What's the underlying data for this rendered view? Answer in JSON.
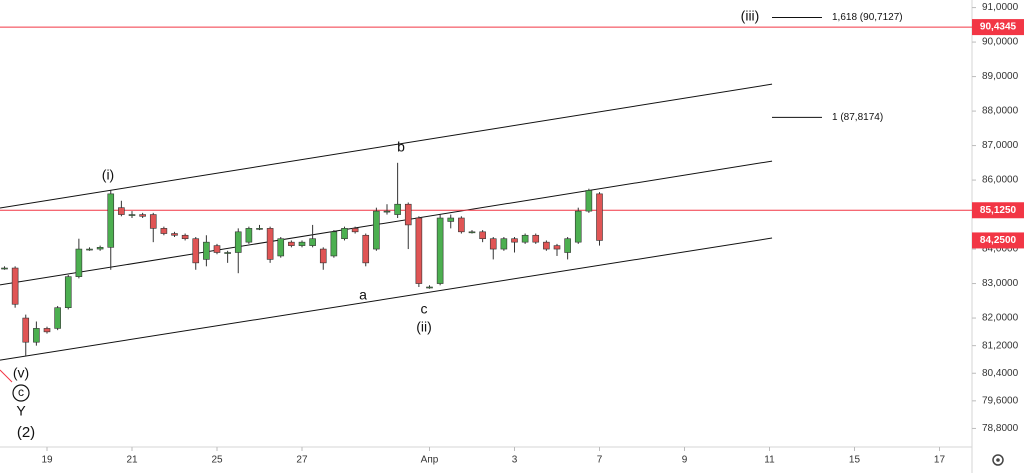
{
  "chart_data": {
    "type": "candlestick",
    "x": [
      -1,
      -0.75,
      -0.5,
      -0.25,
      0,
      0.25,
      0.5,
      0.75,
      1,
      1.25,
      1.5,
      1.75,
      2,
      2.25,
      2.5,
      2.75,
      3,
      3.25,
      3.5,
      3.75,
      4,
      4.25,
      4.5,
      4.75,
      5,
      5.25,
      5.5,
      5.75,
      6,
      6.25,
      6.5,
      6.75,
      7,
      7.25,
      7.5,
      7.75,
      8,
      8.25,
      8.5,
      8.75,
      9,
      9.25,
      9.5,
      9.75,
      10,
      10.25,
      10.5,
      10.75,
      11,
      11.25,
      11.5,
      11.75,
      12,
      12.25,
      12.5,
      12.75,
      13
    ],
    "open": [
      83.45,
      83.45,
      82.0,
      81.3,
      81.7,
      81.7,
      82.3,
      83.2,
      84.0,
      84.0,
      84.05,
      85.2,
      85.0,
      85.0,
      85.0,
      84.6,
      84.45,
      84.4,
      84.3,
      83.7,
      84.1,
      83.9,
      83.9,
      84.2,
      84.6,
      84.6,
      83.8,
      84.2,
      84.1,
      84.1,
      84.0,
      83.8,
      84.3,
      84.6,
      84.4,
      84.0,
      85.1,
      85.0,
      85.3,
      84.9,
      82.9,
      83.0,
      84.8,
      84.9,
      84.5,
      84.5,
      84.3,
      84.0,
      84.3,
      84.2,
      84.4,
      84.2,
      84.1,
      83.9,
      84.2,
      85.1,
      85.6
    ],
    "high": [
      83.5,
      83.5,
      82.1,
      81.9,
      81.75,
      82.35,
      83.25,
      84.3,
      84.05,
      84.1,
      85.7,
      85.4,
      85.1,
      85.05,
      85.05,
      84.65,
      84.5,
      84.45,
      84.35,
      84.4,
      84.15,
      83.95,
      84.6,
      84.65,
      84.7,
      84.65,
      84.35,
      84.25,
      84.25,
      84.7,
      84.05,
      84.55,
      84.65,
      84.65,
      84.45,
      85.2,
      85.3,
      86.5,
      85.35,
      84.95,
      82.95,
      85.0,
      85.0,
      84.95,
      84.55,
      84.55,
      84.35,
      84.35,
      84.35,
      84.45,
      84.45,
      84.25,
      84.15,
      84.35,
      85.2,
      85.75,
      85.65
    ],
    "low": [
      83.4,
      82.3,
      80.9,
      81.2,
      81.55,
      81.65,
      82.25,
      83.15,
      83.95,
      83.95,
      83.4,
      84.95,
      84.9,
      84.9,
      84.2,
      84.4,
      84.35,
      84.25,
      83.4,
      83.5,
      83.85,
      83.6,
      83.3,
      84.15,
      84.55,
      83.6,
      83.75,
      84.05,
      84.05,
      84.05,
      83.4,
      83.75,
      84.25,
      84.45,
      83.5,
      83.95,
      85.0,
      84.9,
      84.0,
      82.9,
      82.85,
      82.95,
      84.6,
      84.45,
      84.45,
      84.2,
      83.7,
      83.95,
      83.9,
      84.15,
      84.15,
      83.95,
      83.8,
      83.7,
      84.15,
      85.05,
      84.1
    ],
    "close": [
      83.45,
      82.4,
      81.3,
      81.7,
      81.6,
      82.3,
      83.2,
      84.0,
      84.0,
      84.05,
      85.6,
      85.0,
      85.0,
      84.95,
      84.6,
      84.45,
      84.4,
      84.3,
      83.6,
      84.2,
      83.9,
      83.9,
      84.5,
      84.6,
      84.6,
      83.7,
      84.3,
      84.1,
      84.2,
      84.3,
      83.6,
      84.5,
      84.6,
      84.5,
      83.6,
      85.1,
      85.1,
      85.3,
      84.7,
      83.0,
      82.9,
      84.9,
      84.9,
      84.5,
      84.5,
      84.3,
      84.0,
      84.3,
      84.2,
      84.4,
      84.2,
      84.0,
      84.0,
      84.3,
      85.1,
      85.7,
      84.25
    ],
    "up_color": "#4caf50",
    "down_color": "#e05555",
    "xlim": [
      -1.106,
      21.765
    ],
    "ylim": [
      78.03,
      91.22
    ],
    "xticks": [
      {
        "value": 0,
        "label": "19"
      },
      {
        "value": 2,
        "label": "21"
      },
      {
        "value": 4,
        "label": "25"
      },
      {
        "value": 6,
        "label": "27"
      },
      {
        "value": 9,
        "label": "Апр"
      },
      {
        "value": 11,
        "label": "3"
      },
      {
        "value": 13,
        "label": "7"
      },
      {
        "value": 15,
        "label": "9"
      },
      {
        "value": 17,
        "label": "11"
      },
      {
        "value": 19,
        "label": "15"
      },
      {
        "value": 21,
        "label": "17"
      }
    ],
    "yticks": [
      {
        "value": 91,
        "label": "91,0000"
      },
      {
        "value": 90,
        "label": "90,0000"
      },
      {
        "value": 89,
        "label": "89,0000"
      },
      {
        "value": 88,
        "label": "88,0000"
      },
      {
        "value": 87,
        "label": "87,0000"
      },
      {
        "value": 86,
        "label": "86,0000"
      },
      {
        "value": 84,
        "label": "84,0000"
      },
      {
        "value": 83,
        "label": "83,0000"
      },
      {
        "value": 82,
        "label": "82,0000"
      },
      {
        "value": 81.2,
        "label": "81,2000"
      },
      {
        "value": 80.4,
        "label": "80,4000"
      },
      {
        "value": 79.6,
        "label": "79,6000"
      },
      {
        "value": 78.8,
        "label": "78,8000"
      }
    ],
    "hlines": [
      {
        "value": 90.4345,
        "label": "90,4345",
        "color": "#f23645"
      },
      {
        "value": 85.125,
        "label": "85,1250",
        "color": "#f23645"
      }
    ],
    "last_price": {
      "value": 84.25,
      "label": "84,2500",
      "color": "#f23645"
    },
    "trendlines": [
      {
        "x": [
          -1.106,
          17.06
        ],
        "y": [
          85.19,
          88.78
        ]
      },
      {
        "x": [
          -1.106,
          17.06
        ],
        "y": [
          82.96,
          86.55
        ]
      },
      {
        "x": [
          -1.106,
          17.06
        ],
        "y": [
          80.78,
          84.32
        ]
      }
    ],
    "fib_levels": [
      {
        "value": 90.7127,
        "label": "1,618 (90,7127)"
      },
      {
        "value": 87.8174,
        "label": "1 (87,8174)"
      }
    ],
    "wave_labels": [
      "(iii)",
      "(i)",
      "b",
      "a",
      "c",
      "(ii)",
      "(v)",
      "c",
      "Y",
      "(2)"
    ]
  }
}
